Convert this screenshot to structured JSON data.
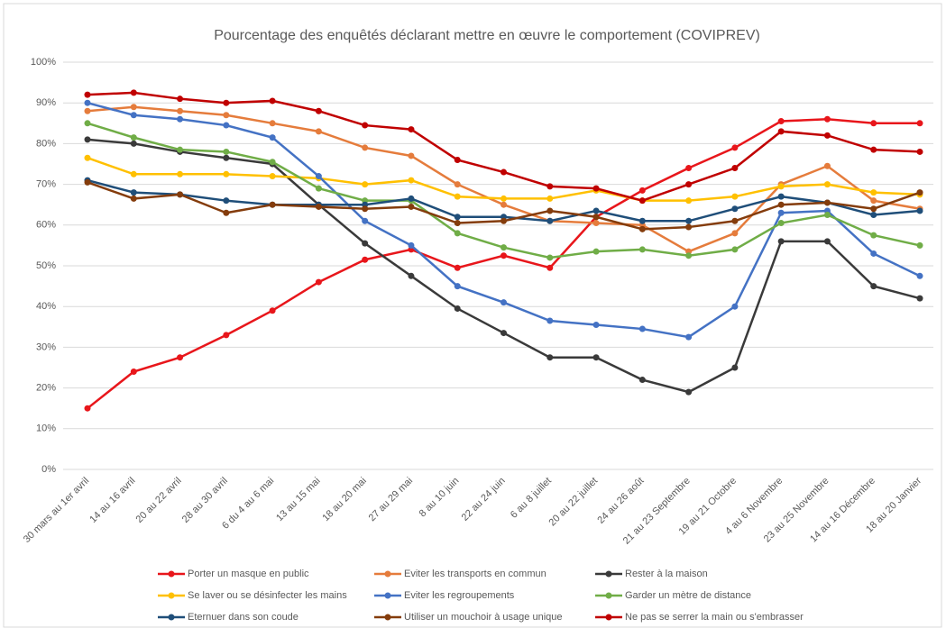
{
  "chart_data": {
    "type": "line",
    "title": "Pourcentage des enquêtés déclarant mettre en œuvre le comportement (COVIPREV)",
    "categories": [
      "30 mars au 1er avril",
      "14 au 16 avril",
      "20 au 22 avril",
      "28 au 30 avril",
      "6 du 4 au 6 mai",
      "13 au 15 mai",
      "18 au 20 mai",
      "27 au 29 mai",
      "8 au 10 juin",
      "22 au 24 juin",
      "6 au 8 juillet",
      "20 au 22 juillet",
      "24 au 26 août",
      "21 au 23 Septembre",
      "19 au 21 Octobre",
      "4 au 6 Novembre",
      "23 au 25 Novembre",
      "14 au 16 Décembre",
      "18 au 20 Janvier"
    ],
    "series": [
      {
        "name": "Porter un masque en public",
        "color": "#e8161b",
        "values": [
          15,
          24,
          27.5,
          33,
          39,
          46,
          51.5,
          54,
          49.5,
          52.5,
          49.5,
          62,
          68.5,
          74,
          79,
          85.5,
          86,
          85,
          85
        ]
      },
      {
        "name": "Eviter les transports en commun",
        "color": "#e57c3c",
        "values": [
          88,
          89,
          88,
          87,
          85,
          83,
          79,
          77,
          70,
          65,
          61,
          60.5,
          60,
          53.5,
          58,
          70,
          74.5,
          66,
          64
        ]
      },
      {
        "name": "Rester à la maison",
        "color": "#3a3a3a",
        "values": [
          81,
          80,
          78,
          76.5,
          75,
          65,
          55.5,
          47.5,
          39.5,
          33.5,
          27.5,
          27.5,
          22,
          19,
          25,
          56,
          56,
          45,
          42
        ]
      },
      {
        "name": "Se laver ou se désinfecter les mains",
        "color": "#ffc000",
        "values": [
          76.5,
          72.5,
          72.5,
          72.5,
          72,
          71.5,
          70,
          71,
          67,
          66.5,
          66.5,
          68.5,
          66,
          66,
          67,
          69.5,
          70,
          68,
          67.5
        ]
      },
      {
        "name": "Eviter les regroupements",
        "color": "#4472c4",
        "values": [
          90,
          87,
          86,
          84.5,
          81.5,
          72,
          61,
          55,
          45,
          41,
          36.5,
          35.5,
          34.5,
          32.5,
          40,
          63,
          63.5,
          53,
          47.5
        ]
      },
      {
        "name": "Garder un mètre de distance",
        "color": "#70ad47",
        "values": [
          85,
          81.5,
          78.5,
          78,
          75.5,
          69,
          66,
          66,
          58,
          54.5,
          52,
          53.5,
          54,
          52.5,
          54,
          60.5,
          62.5,
          57.5,
          55
        ]
      },
      {
        "name": "Eternuer dans son coude",
        "color": "#1f4e79",
        "values": [
          71,
          68,
          67.5,
          66,
          65,
          65,
          65,
          66.5,
          62,
          62,
          61,
          63.5,
          61,
          61,
          64,
          67,
          65.5,
          62.5,
          63.5
        ]
      },
      {
        "name": "Utiliser un mouchoir à usage unique",
        "color": "#843c0c",
        "values": [
          70.5,
          66.5,
          67.5,
          63,
          65,
          64.5,
          64,
          64.5,
          60.5,
          61,
          63.5,
          62,
          59,
          59.5,
          61,
          65,
          65.5,
          64,
          68
        ]
      },
      {
        "name": "Ne pas se serrer la main ou s'embrasser",
        "color": "#c00000",
        "values": [
          92,
          92.5,
          91,
          90,
          90.5,
          88,
          84.5,
          83.5,
          76,
          73,
          69.5,
          69,
          66,
          70,
          74,
          83,
          82,
          78.5,
          78
        ]
      }
    ],
    "ylim": [
      0,
      100
    ],
    "yticks": [
      {
        "value": 0,
        "label": "0%"
      },
      {
        "value": 10,
        "label": "10%"
      },
      {
        "value": 20,
        "label": "20%"
      },
      {
        "value": 30,
        "label": "30%"
      },
      {
        "value": 40,
        "label": "40%"
      },
      {
        "value": 50,
        "label": "50%"
      },
      {
        "value": 60,
        "label": "60%"
      },
      {
        "value": 70,
        "label": "70%"
      },
      {
        "value": 80,
        "label": "80%"
      },
      {
        "value": 90,
        "label": "90%"
      },
      {
        "value": 100,
        "label": "100%"
      }
    ],
    "grid": true,
    "legend": "bottom"
  }
}
